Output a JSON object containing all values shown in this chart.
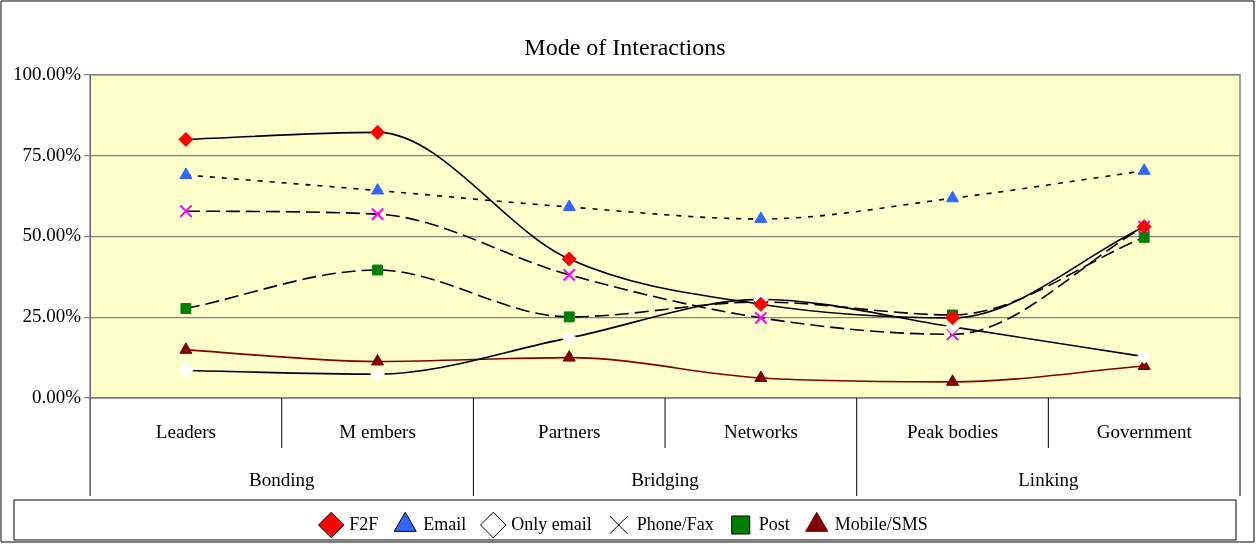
{
  "chart_data": {
    "type": "line",
    "title": "Mode of Interactions",
    "categories": [
      "Leaders",
      "M embers",
      "Partners",
      "Networks",
      "Peak bodies",
      "Government"
    ],
    "annotations": [
      "Bonding",
      "Bridging",
      "Linking"
    ],
    "series": [
      {
        "name": "F2F",
        "color": "#000000",
        "colors": [
          "#ff0000",
          "#ff0000",
          "#ff0000",
          "#ff0000",
          "#ff0000",
          "#ff0000"
        ],
        "marker": "diamond",
        "line_style": "solid",
        "values": [
          80,
          82.2,
          43,
          29,
          24.8,
          53
        ]
      },
      {
        "name": "Email",
        "color": "#000000",
        "colors": [
          "#3366ff",
          "#3366ff",
          "#3366ff",
          "#3366ff",
          "#3366ff",
          "#3366ff"
        ],
        "marker": "triangle",
        "line_style": "dotted",
        "values": [
          69,
          64.2,
          59.1,
          55.4,
          61.8,
          70.3
        ]
      },
      {
        "name": "Only email",
        "color": "#000000",
        "colors": [
          "#ffffff",
          "#ffffff",
          "#ffffff",
          "#ffffff",
          "#ffffff",
          "#ffffff"
        ],
        "marker": "diamond",
        "line_style": "solid",
        "values": [
          8.5,
          7.4,
          18.6,
          30.5,
          22,
          12.8
        ]
      },
      {
        "name": "Phone/Fax",
        "color": "#000000",
        "colors": [
          "#ff00ff",
          "#ff00ff",
          "#ff00ff",
          "#ff00ff",
          "#ff00ff",
          "#ff00ff"
        ],
        "marker": "cross",
        "line_style": "dashed",
        "values": [
          57.8,
          56.9,
          38.1,
          24.8,
          19.7,
          53
        ]
      },
      {
        "name": "Post",
        "color": "#000000",
        "colors": [
          "#008000",
          "#008000",
          "#008000",
          "#008000",
          "#008000",
          "#008000"
        ],
        "marker": "square",
        "line_style": "dashed",
        "values": [
          27.7,
          39.6,
          25.1,
          29.7,
          25.7,
          49.7
        ]
      },
      {
        "name": "Mobile/SMS",
        "color": "#800000",
        "colors": [
          "#800000",
          "#800000",
          "#800000",
          "#800000",
          "#800000",
          "#800000"
        ],
        "marker": "triangle",
        "line_style": "solid",
        "values": [
          14.9,
          11.3,
          12.5,
          6.2,
          5,
          9.9
        ]
      }
    ],
    "ylim": [
      0,
      100
    ],
    "yticks": [
      {
        "value": 0,
        "label": "0.00%"
      },
      {
        "value": 25,
        "label": "25.00%"
      },
      {
        "value": 50,
        "label": "50.00%"
      },
      {
        "value": 75,
        "label": "75.00%"
      },
      {
        "value": 100,
        "label": "100.00%"
      }
    ],
    "grid": "y",
    "legend": "bottom"
  }
}
